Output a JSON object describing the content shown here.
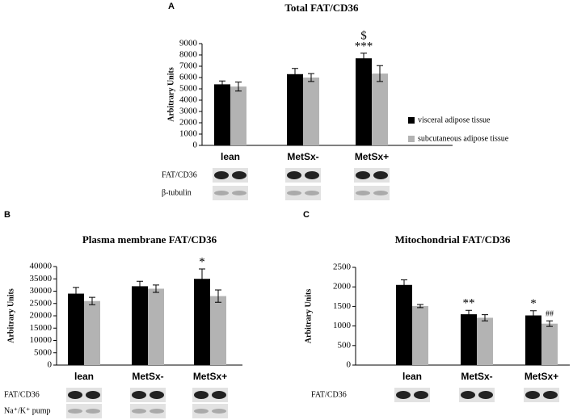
{
  "chart_data": [
    {
      "type": "bar",
      "panel": "A",
      "title": "Total FAT/CD36",
      "ylabel": "Arbitrary Units",
      "categories": [
        "lean",
        "MetSx-",
        "MetSx+"
      ],
      "series": [
        {
          "name": "visceral adipose tissue",
          "color": "#000000",
          "values": [
            5400,
            6300,
            7700
          ],
          "errors": [
            300,
            500,
            450
          ],
          "annotations": [
            null,
            null,
            [
              "$",
              "***"
            ]
          ]
        },
        {
          "name": "subcutaneous adipose tissue",
          "color": "#b3b3b3",
          "values": [
            5200,
            6000,
            6350
          ],
          "errors": [
            400,
            350,
            700
          ],
          "annotations": [
            null,
            null,
            null
          ]
        }
      ],
      "ylim": [
        0,
        9000
      ],
      "yticks": [
        0,
        1000,
        2000,
        3000,
        4000,
        5000,
        6000,
        7000,
        8000,
        9000
      ],
      "legend": "right",
      "blots": [
        "FAT/CD36",
        "β-tubulin"
      ]
    },
    {
      "type": "bar",
      "panel": "B",
      "title": "Plasma membrane FAT/CD36",
      "ylabel": "Arbitrary Units",
      "categories": [
        "lean",
        "MetSx-",
        "MetSx+"
      ],
      "series": [
        {
          "color": "#000000",
          "values": [
            29000,
            32000,
            35000
          ],
          "errors": [
            2500,
            2000,
            4000
          ],
          "annotations": [
            null,
            null,
            [
              "*"
            ]
          ]
        },
        {
          "color": "#b3b3b3",
          "values": [
            26000,
            31000,
            28000
          ],
          "errors": [
            1500,
            1500,
            2500
          ],
          "annotations": [
            null,
            null,
            null
          ]
        }
      ],
      "ylim": [
        0,
        40000
      ],
      "yticks": [
        0,
        5000,
        10000,
        15000,
        20000,
        25000,
        30000,
        35000,
        40000
      ],
      "blots": [
        "FAT/CD36",
        "Na⁺/K⁺ pump"
      ]
    },
    {
      "type": "bar",
      "panel": "C",
      "title": "Mitochondrial FAT/CD36",
      "ylabel": "Arbitrary Units",
      "categories": [
        "lean",
        "MetSx-",
        "MetSx+"
      ],
      "series": [
        {
          "color": "#000000",
          "values": [
            2050,
            1300,
            1270
          ],
          "errors": [
            130,
            100,
            120
          ],
          "annotations": [
            null,
            [
              "**"
            ],
            [
              "*"
            ]
          ]
        },
        {
          "color": "#b3b3b3",
          "values": [
            1510,
            1210,
            1060
          ],
          "errors": [
            40,
            80,
            70
          ],
          "annotations": [
            null,
            null,
            [
              "##"
            ]
          ]
        }
      ],
      "ylim": [
        0,
        2500
      ],
      "yticks": [
        0,
        500,
        1000,
        1500,
        2000,
        2500
      ],
      "blots": [
        "FAT/CD36"
      ]
    }
  ]
}
